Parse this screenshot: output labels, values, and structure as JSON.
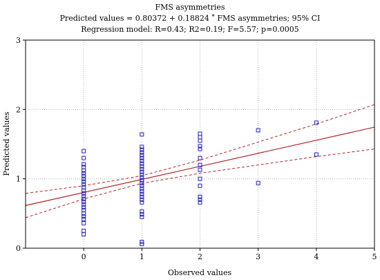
{
  "chart_data": {
    "type": "scatter",
    "title": "FMS asymmetries",
    "subtitle_pre": "Predicted values = 0.80372 + 0.18824 ",
    "subtitle_mul": "*",
    "subtitle_post": " FMS asymmetries; 95% CI",
    "subtitle2": "Regression model: R=0.43; R2=0.19; F=5.57; p=0.0005",
    "xlabel": "Observed values",
    "ylabel": "Predicted values",
    "xlim": [
      -1,
      5
    ],
    "ylim": [
      0,
      3
    ],
    "xticks": [
      0,
      1,
      2,
      3,
      4,
      5
    ],
    "yticks": [
      0,
      1,
      2,
      3
    ],
    "grid": true,
    "colors": {
      "points": "#1f1fbf",
      "fit": "#b22222",
      "ci": "#b22222",
      "grid": "#b0b0b0"
    },
    "regression": {
      "intercept": 0.80372,
      "slope": 0.18824
    },
    "ci_lower": [
      [
        -1,
        0.44
      ],
      [
        0,
        0.71
      ],
      [
        1,
        0.935
      ],
      [
        2,
        1.08
      ],
      [
        3,
        1.2
      ],
      [
        4,
        1.32
      ],
      [
        5,
        1.43
      ]
    ],
    "ci_upper": [
      [
        -1,
        0.79
      ],
      [
        0,
        0.9
      ],
      [
        1,
        1.045
      ],
      [
        2,
        1.27
      ],
      [
        3,
        1.53
      ],
      [
        4,
        1.79
      ],
      [
        5,
        2.07
      ]
    ],
    "points": [
      [
        0,
        0.2
      ],
      [
        0,
        0.25
      ],
      [
        0,
        0.36
      ],
      [
        0,
        0.42
      ],
      [
        0,
        0.46
      ],
      [
        0,
        0.5
      ],
      [
        0,
        0.55
      ],
      [
        0,
        0.59
      ],
      [
        0,
        0.63
      ],
      [
        0,
        0.67
      ],
      [
        0,
        0.71
      ],
      [
        0,
        0.75
      ],
      [
        0,
        0.79
      ],
      [
        0,
        0.83
      ],
      [
        0,
        0.88
      ],
      [
        0,
        0.92
      ],
      [
        0,
        0.96
      ],
      [
        0,
        1.0
      ],
      [
        0,
        1.04
      ],
      [
        0,
        1.08
      ],
      [
        0,
        1.12
      ],
      [
        0,
        1.17
      ],
      [
        0,
        1.21
      ],
      [
        0,
        1.3
      ],
      [
        0,
        1.4
      ],
      [
        1,
        0.06
      ],
      [
        1,
        0.09
      ],
      [
        1,
        0.45
      ],
      [
        1,
        0.49
      ],
      [
        1,
        0.53
      ],
      [
        1,
        0.66
      ],
      [
        1,
        0.7
      ],
      [
        1,
        0.74
      ],
      [
        1,
        0.78
      ],
      [
        1,
        0.82
      ],
      [
        1,
        0.86
      ],
      [
        1,
        0.9
      ],
      [
        1,
        0.94
      ],
      [
        1,
        0.98
      ],
      [
        1,
        1.02
      ],
      [
        1,
        1.06
      ],
      [
        1,
        1.1
      ],
      [
        1,
        1.14
      ],
      [
        1,
        1.18
      ],
      [
        1,
        1.22
      ],
      [
        1,
        1.26
      ],
      [
        1,
        1.3
      ],
      [
        1,
        1.34
      ],
      [
        1,
        1.38
      ],
      [
        1,
        1.42
      ],
      [
        1,
        1.46
      ],
      [
        1,
        1.64
      ],
      [
        2,
        0.66
      ],
      [
        2,
        0.7
      ],
      [
        2,
        0.74
      ],
      [
        2,
        0.9
      ],
      [
        2,
        1.0
      ],
      [
        2,
        1.13
      ],
      [
        2,
        1.2
      ],
      [
        2,
        1.3
      ],
      [
        2,
        1.43
      ],
      [
        2,
        1.47
      ],
      [
        2,
        1.55
      ],
      [
        2,
        1.6
      ],
      [
        2,
        1.65
      ],
      [
        3,
        0.94
      ],
      [
        3,
        1.7
      ],
      [
        4,
        1.35
      ],
      [
        4,
        1.81
      ]
    ]
  }
}
